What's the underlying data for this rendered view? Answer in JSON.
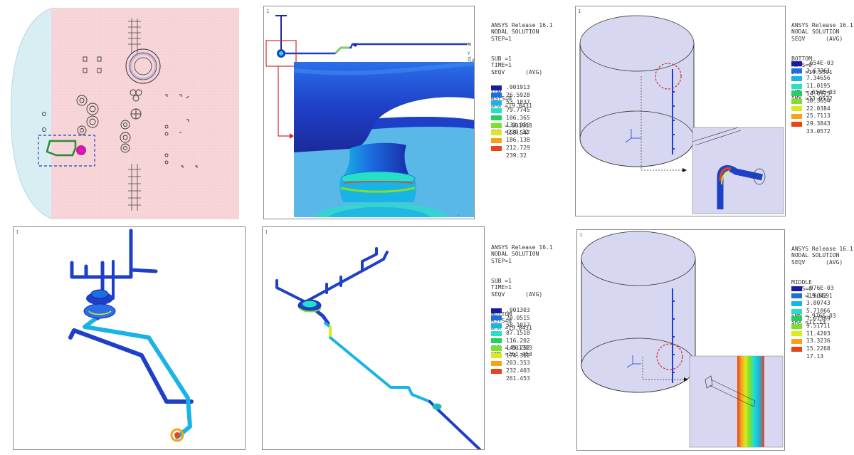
{
  "colors": {
    "tank_fill": "#f7d6d9",
    "tank_head": "#d8eef3",
    "highlight_box": "#1f3fbf",
    "callout": "#d62828",
    "cyl_fill": "#d7d7f1",
    "pipe_blue": "#1f3fd0"
  },
  "panels": {
    "a": {
      "plot_number": "1",
      "header": [
        "ANSYS Release 16.1",
        "NODAL SOLUTION",
        "STEP=1",
        "SUB =1",
        "TIME=1",
        "SEQV      (AVG)",
        "TOP",
        "RSYS=0",
        "DMX =19.8431",
        "SMN =.001913",
        "SMX =239.32"
      ],
      "legend": [
        {
          "value": ".001913",
          "color": "#1a1aa8"
        },
        {
          "value": "26.5928",
          "color": "#1b6fe0"
        },
        {
          "value": "53.1837",
          "color": "#19b3e6"
        },
        {
          "value": "79.7745",
          "color": "#25e0c7"
        },
        {
          "value": "106.365",
          "color": "#20d060"
        },
        {
          "value": "132.956",
          "color": "#7ee02a"
        },
        {
          "value": "159.547",
          "color": "#d9ea1f"
        },
        {
          "value": "186.138",
          "color": "#f5a21a"
        },
        {
          "value": "212.729",
          "color": "#e8441a"
        },
        {
          "value": "239.32",
          "color": ""
        }
      ],
      "markers": {
        "mn": "MN",
        "mx": "MX"
      },
      "triad": {
        "y": "Y",
        "z": "Z",
        "x": "X"
      }
    },
    "b": {
      "plot_number": "1",
      "header": [
        "ANSYS Release 16.1",
        "NODAL SOLUTION",
        "SEQV      (AVG)",
        "BOTTOM",
        "RSYS=0",
        "DMX =19.5591",
        "SMN =.654E-03",
        "SMX =33.0572"
      ],
      "legend": [
        {
          "value": ".654E-03",
          "color": "#1a1aa8"
        },
        {
          "value": "3.67361",
          "color": "#1b6fe0"
        },
        {
          "value": "7.34656",
          "color": "#19b3e6"
        },
        {
          "value": "11.0195",
          "color": "#25e0c7"
        },
        {
          "value": "14.6925",
          "color": "#20d060"
        },
        {
          "value": "18.3654",
          "color": "#7ee02a"
        },
        {
          "value": "22.0384",
          "color": "#d9ea1f"
        },
        {
          "value": "25.7113",
          "color": "#f5a21a"
        },
        {
          "value": "29.3843",
          "color": "#e8441a"
        },
        {
          "value": "33.0572",
          "color": ""
        }
      ]
    },
    "c": {
      "plot_number": "1"
    },
    "d": {
      "plot_number": "1",
      "header": [
        "ANSYS Release 16.1",
        "NODAL SOLUTION",
        "STEP=1",
        "SUB =1",
        "TIME=1",
        "SEQV      (AVG)",
        "BOTTOM",
        "RSYS=0",
        "DMX =19.8431",
        "SMN =.001303",
        "SMX =261.453"
      ],
      "legend": [
        {
          "value": ".001303",
          "color": "#1a1aa8"
        },
        {
          "value": "29.0515",
          "color": "#1b6fe0"
        },
        {
          "value": "58.1017",
          "color": "#19b3e6"
        },
        {
          "value": "87.1518",
          "color": "#25e0c7"
        },
        {
          "value": "116.202",
          "color": "#20d060"
        },
        {
          "value": "145.252",
          "color": "#7ee02a"
        },
        {
          "value": "174.302",
          "color": "#d9ea1f"
        },
        {
          "value": "203.353",
          "color": "#f5a21a"
        },
        {
          "value": "232.403",
          "color": "#e8441a"
        },
        {
          "value": "261.453",
          "color": ""
        }
      ]
    },
    "e": {
      "plot_number": "1",
      "header": [
        "ANSYS Release 16.1",
        "NODAL SOLUTION",
        "SEQV      (AVG)",
        "MIDDLE",
        "RSYS=0",
        "DMX =19.5591",
        "SMN =.976E-03",
        "SMX =17.13"
      ],
      "legend": [
        {
          "value": ".976E-03",
          "color": "#1a1aa8"
        },
        {
          "value": "1.9042",
          "color": "#1b6fe0"
        },
        {
          "value": "3.80743",
          "color": "#19b3e6"
        },
        {
          "value": "5.71066",
          "color": "#25e0c7"
        },
        {
          "value": "7.61389",
          "color": "#20d060"
        },
        {
          "value": "9.51711",
          "color": "#7ee02a"
        },
        {
          "value": "11.4203",
          "color": "#d9ea1f"
        },
        {
          "value": "13.3236",
          "color": "#f5a21a"
        },
        {
          "value": "15.2268",
          "color": "#e8441a"
        },
        {
          "value": "17.13",
          "color": ""
        }
      ]
    }
  }
}
